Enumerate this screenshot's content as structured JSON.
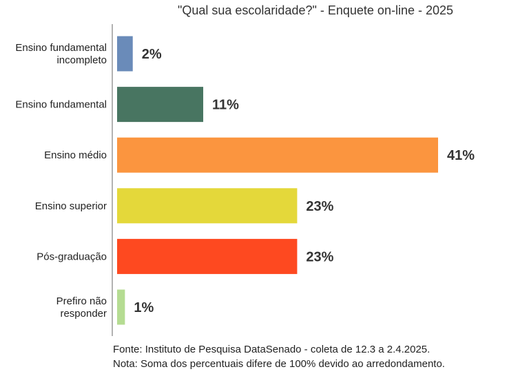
{
  "chart_data": {
    "type": "bar",
    "orientation": "horizontal",
    "title": "\"Qual sua escolaridade?\" - Enquete on-line - 2025",
    "categories": [
      [
        "Ensino fundamental",
        "incompleto"
      ],
      [
        "Ensino fundamental"
      ],
      [
        "Ensino médio"
      ],
      [
        "Ensino superior"
      ],
      [
        "Pós-graduação"
      ],
      [
        "Prefiro não",
        "responder"
      ]
    ],
    "values": [
      2,
      11,
      41,
      23,
      23,
      1
    ],
    "value_labels": [
      "2%",
      "11%",
      "41%",
      "23%",
      "23%",
      "1%"
    ],
    "colors": [
      "#6a8bb9",
      "#487561",
      "#fb953f",
      "#e4d83a",
      "#fe4920",
      "#b5dc92"
    ],
    "xlim": [
      0,
      41
    ],
    "grid": false,
    "legend": "none"
  },
  "footer": {
    "source": "Fonte: Instituto de Pesquisa DataSenado - coleta de 12.3 a 2.4.2025.",
    "note": "Nota: Soma dos percentuais difere de 100% devido ao arredondamento."
  }
}
